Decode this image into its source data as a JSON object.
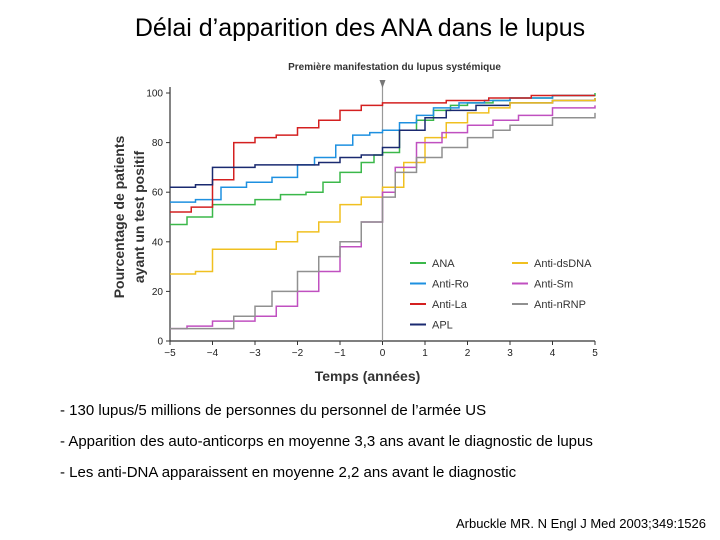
{
  "slide": {
    "title": "Délai d’apparition des ANA dans le lupus",
    "bullets": [
      "- 130 lupus/5 millions de personnes du personnel de l’armée US",
      "- Apparition des auto-anticorps en moyenne 3,3 ans avant le diagnostic de lupus",
      "- Les anti-DNA apparaissent en moyenne 2,2 ans avant le diagnostic"
    ],
    "citation": "Arbuckle MR. N Engl J Med 2003;349:1526"
  },
  "chart_data": {
    "type": "line",
    "step": true,
    "annotation": "Première manifestation du lupus systémique",
    "annotation_x": 0,
    "xlabel": "Temps (années)",
    "ylabel_lines": [
      "Pourcentage de patients",
      "ayant un test positif"
    ],
    "xlim": [
      -5,
      5
    ],
    "ylim": [
      0,
      100
    ],
    "xticks": [
      "−5",
      "−4",
      "−3",
      "−2",
      "−1",
      "0",
      "1",
      "2",
      "3",
      "4",
      "5"
    ],
    "yticks": [
      "0",
      "20",
      "40",
      "60",
      "80",
      "100"
    ],
    "legend_position": "bottom-right",
    "series": [
      {
        "name": "ANA",
        "color": "#3bb84a",
        "points": [
          [
            -5,
            47
          ],
          [
            -4.6,
            50
          ],
          [
            -4,
            55
          ],
          [
            -3,
            57
          ],
          [
            -2.4,
            59
          ],
          [
            -1.8,
            60
          ],
          [
            -1.4,
            64
          ],
          [
            -1,
            68
          ],
          [
            -0.5,
            72
          ],
          [
            -0.2,
            75
          ],
          [
            0,
            76
          ],
          [
            0.4,
            85
          ],
          [
            0.8,
            89
          ],
          [
            1.2,
            93
          ],
          [
            1.6,
            95
          ],
          [
            2,
            96
          ],
          [
            2.6,
            97
          ],
          [
            3,
            98
          ],
          [
            4,
            99
          ],
          [
            5,
            100
          ]
        ]
      },
      {
        "name": "Anti-Ro",
        "color": "#1e90e0",
        "points": [
          [
            -5,
            56
          ],
          [
            -4.4,
            57
          ],
          [
            -3.8,
            62
          ],
          [
            -3.2,
            64
          ],
          [
            -2.6,
            66
          ],
          [
            -2,
            71
          ],
          [
            -1.6,
            74
          ],
          [
            -1.1,
            79
          ],
          [
            -0.7,
            83
          ],
          [
            -0.3,
            84
          ],
          [
            0,
            85
          ],
          [
            0.4,
            88
          ],
          [
            0.8,
            91
          ],
          [
            1.2,
            94
          ],
          [
            1.8,
            96
          ],
          [
            2.4,
            97
          ],
          [
            3,
            98
          ],
          [
            4,
            99
          ],
          [
            5,
            99
          ]
        ]
      },
      {
        "name": "Anti-La",
        "color": "#d42020",
        "points": [
          [
            -5,
            52
          ],
          [
            -4.5,
            54
          ],
          [
            -4,
            65
          ],
          [
            -3.5,
            80
          ],
          [
            -3,
            82
          ],
          [
            -2.5,
            83
          ],
          [
            -2,
            86
          ],
          [
            -1.5,
            89
          ],
          [
            -1,
            93
          ],
          [
            -0.5,
            95
          ],
          [
            0,
            96
          ],
          [
            0.8,
            96
          ],
          [
            1.5,
            97
          ],
          [
            2.5,
            98
          ],
          [
            3.5,
            99
          ],
          [
            5,
            99
          ]
        ]
      },
      {
        "name": "APL",
        "color": "#1a2a70",
        "points": [
          [
            -5,
            62
          ],
          [
            -4.4,
            63
          ],
          [
            -4,
            70
          ],
          [
            -3,
            71
          ],
          [
            -2,
            71
          ],
          [
            -1.5,
            72
          ],
          [
            -1,
            74
          ],
          [
            -0.5,
            75
          ],
          [
            0,
            78
          ],
          [
            0.4,
            85
          ],
          [
            1,
            90
          ],
          [
            1.5,
            93
          ],
          [
            2.2,
            95
          ],
          [
            3,
            96
          ],
          [
            4,
            97
          ],
          [
            5,
            98
          ]
        ]
      },
      {
        "name": "Anti-dsDNA",
        "color": "#f0c020",
        "points": [
          [
            -5,
            27
          ],
          [
            -4.4,
            28
          ],
          [
            -4,
            37
          ],
          [
            -3,
            37
          ],
          [
            -2.5,
            40
          ],
          [
            -2,
            44
          ],
          [
            -1.5,
            48
          ],
          [
            -1,
            55
          ],
          [
            -0.5,
            58
          ],
          [
            0,
            62
          ],
          [
            0.5,
            72
          ],
          [
            1,
            82
          ],
          [
            1.5,
            88
          ],
          [
            2,
            92
          ],
          [
            2.5,
            94
          ],
          [
            3,
            96
          ],
          [
            4,
            97
          ],
          [
            5,
            98
          ]
        ]
      },
      {
        "name": "Anti-Sm",
        "color": "#c050c0",
        "points": [
          [
            -5,
            5
          ],
          [
            -4.6,
            6
          ],
          [
            -4,
            8
          ],
          [
            -3,
            10
          ],
          [
            -2.5,
            14
          ],
          [
            -2,
            20
          ],
          [
            -1.5,
            28
          ],
          [
            -1,
            38
          ],
          [
            -0.5,
            48
          ],
          [
            0,
            60
          ],
          [
            0.3,
            70
          ],
          [
            0.8,
            80
          ],
          [
            1.4,
            84
          ],
          [
            2,
            87
          ],
          [
            2.6,
            89
          ],
          [
            3.2,
            91
          ],
          [
            4,
            94
          ],
          [
            5,
            95
          ]
        ]
      },
      {
        "name": "Anti-nRNP",
        "color": "#909090",
        "points": [
          [
            -5,
            5
          ],
          [
            -4.6,
            5
          ],
          [
            -3.5,
            10
          ],
          [
            -3,
            14
          ],
          [
            -2.6,
            20
          ],
          [
            -2,
            28
          ],
          [
            -1.5,
            34
          ],
          [
            -1,
            40
          ],
          [
            -0.5,
            48
          ],
          [
            0,
            58
          ],
          [
            0.3,
            68
          ],
          [
            0.8,
            74
          ],
          [
            1.4,
            78
          ],
          [
            2,
            82
          ],
          [
            2.6,
            85
          ],
          [
            3,
            87
          ],
          [
            4,
            90
          ],
          [
            5,
            92
          ]
        ]
      }
    ]
  }
}
